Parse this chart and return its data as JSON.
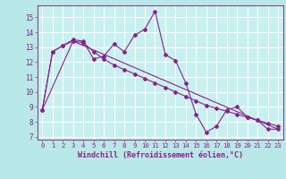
{
  "xlabel": "Windchill (Refroidissement éolien,°C)",
  "bg_color": "#b8e8e8",
  "plot_bg_color": "#c8f0f0",
  "grid_color": "#a8d8d8",
  "line_color": "#882288",
  "border_color": "#884488",
  "xlim": [
    -0.5,
    23.5
  ],
  "ylim": [
    6.8,
    15.8
  ],
  "yticks": [
    7,
    8,
    9,
    10,
    11,
    12,
    13,
    14,
    15
  ],
  "xticks": [
    0,
    1,
    2,
    3,
    4,
    5,
    6,
    7,
    8,
    9,
    10,
    11,
    12,
    13,
    14,
    15,
    16,
    17,
    18,
    19,
    20,
    21,
    22,
    23
  ],
  "series1_x": [
    0,
    1,
    2,
    3,
    4,
    5,
    6,
    7,
    8,
    9,
    10,
    11,
    12,
    13,
    14,
    15,
    16,
    17,
    18,
    19,
    20,
    21,
    22,
    23
  ],
  "series1_y": [
    8.8,
    12.7,
    13.1,
    13.5,
    13.4,
    12.2,
    12.4,
    13.2,
    12.7,
    13.8,
    14.2,
    15.4,
    12.5,
    12.1,
    10.6,
    8.5,
    7.3,
    7.7,
    8.8,
    9.0,
    8.3,
    8.1,
    7.5,
    7.5
  ],
  "series2_x": [
    0,
    1,
    2,
    3,
    4,
    5,
    6,
    7,
    8,
    9,
    10,
    11,
    12,
    13,
    14,
    15,
    16,
    17,
    18,
    19,
    20,
    21,
    22,
    23
  ],
  "series2_y": [
    8.8,
    12.7,
    13.1,
    13.4,
    13.3,
    12.7,
    12.2,
    11.8,
    11.5,
    11.2,
    10.9,
    10.6,
    10.3,
    10.0,
    9.7,
    9.4,
    9.1,
    8.9,
    8.7,
    8.5,
    8.3,
    8.1,
    7.9,
    7.7
  ],
  "trend_x": [
    0,
    3,
    23
  ],
  "trend_y": [
    8.8,
    13.4,
    7.5
  ]
}
